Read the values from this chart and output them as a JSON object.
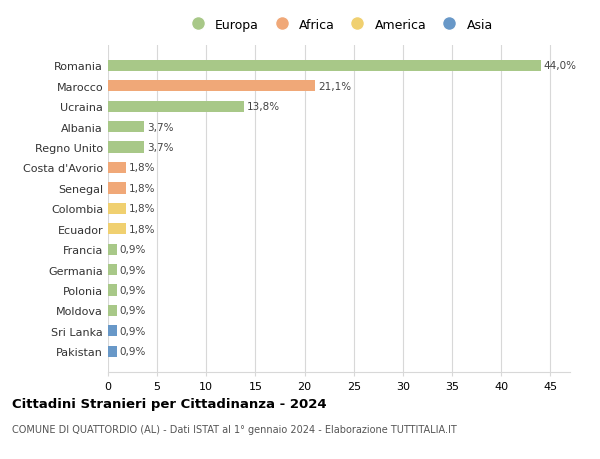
{
  "countries": [
    "Romania",
    "Marocco",
    "Ucraina",
    "Albania",
    "Regno Unito",
    "Costa d'Avorio",
    "Senegal",
    "Colombia",
    "Ecuador",
    "Francia",
    "Germania",
    "Polonia",
    "Moldova",
    "Sri Lanka",
    "Pakistan"
  ],
  "values": [
    44.0,
    21.1,
    13.8,
    3.7,
    3.7,
    1.8,
    1.8,
    1.8,
    1.8,
    0.9,
    0.9,
    0.9,
    0.9,
    0.9,
    0.9
  ],
  "labels": [
    "44,0%",
    "21,1%",
    "13,8%",
    "3,7%",
    "3,7%",
    "1,8%",
    "1,8%",
    "1,8%",
    "1,8%",
    "0,9%",
    "0,9%",
    "0,9%",
    "0,9%",
    "0,9%",
    "0,9%"
  ],
  "continents": [
    "Europa",
    "Africa",
    "Europa",
    "Europa",
    "Europa",
    "Africa",
    "Africa",
    "America",
    "America",
    "Europa",
    "Europa",
    "Europa",
    "Europa",
    "Asia",
    "Asia"
  ],
  "continent_colors": {
    "Europa": "#a8c888",
    "Africa": "#f0a878",
    "America": "#f0d070",
    "Asia": "#6898c8"
  },
  "legend_order": [
    "Europa",
    "Africa",
    "America",
    "Asia"
  ],
  "xlim": [
    0,
    47
  ],
  "xticks": [
    0,
    5,
    10,
    15,
    20,
    25,
    30,
    35,
    40,
    45
  ],
  "title": "Cittadini Stranieri per Cittadinanza - 2024",
  "subtitle": "COMUNE DI QUATTORDIO (AL) - Dati ISTAT al 1° gennaio 2024 - Elaborazione TUTTITALIA.IT",
  "bg_color": "#ffffff",
  "grid_color": "#d8d8d8",
  "bar_height": 0.55
}
